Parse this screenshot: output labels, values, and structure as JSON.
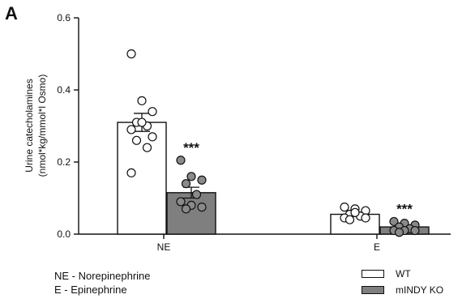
{
  "panel_label": "A",
  "abbreviations": [
    "NE - Norepinephrine",
    "E - Epinephrine"
  ],
  "legend": [
    {
      "label": "WT",
      "color": "#ffffff"
    },
    {
      "label": "mINDY KO",
      "color": "#7f7f7f"
    }
  ],
  "chart_data": {
    "type": "bar",
    "ylabel": "Urine catecholamines",
    "ylabel_unit": "(nmol*kg/mmol*l Osmo)",
    "ylim": [
      0,
      0.6
    ],
    "yticks": [
      "0.0",
      "0.2",
      "0.4",
      "0.6"
    ],
    "categories": [
      "NE",
      "E"
    ],
    "series": [
      {
        "name": "WT",
        "color": "#ffffff",
        "values": [
          0.31,
          0.055
        ],
        "sem": [
          0.025,
          0.006
        ],
        "points": [
          [
            0.5,
            0.37,
            0.34,
            0.31,
            0.3,
            0.29,
            0.31,
            0.27,
            0.26,
            0.24,
            0.17
          ],
          [
            0.075,
            0.07,
            0.065,
            0.055,
            0.05,
            0.045,
            0.06,
            0.045,
            0.04
          ]
        ]
      },
      {
        "name": "mINDY KO",
        "color": "#7f7f7f",
        "values": [
          0.115,
          0.02
        ],
        "sem": [
          0.015,
          0.003
        ],
        "points": [
          [
            0.205,
            0.16,
            0.15,
            0.14,
            0.11,
            0.09,
            0.08,
            0.075,
            0.07
          ],
          [
            0.035,
            0.03,
            0.025,
            0.02,
            0.015,
            0.01,
            0.01,
            0.01,
            0.005
          ]
        ]
      }
    ],
    "significance": [
      {
        "category": "NE",
        "series": "mINDY KO",
        "label": "***"
      },
      {
        "category": "E",
        "series": "mINDY KO",
        "label": "***"
      }
    ]
  }
}
